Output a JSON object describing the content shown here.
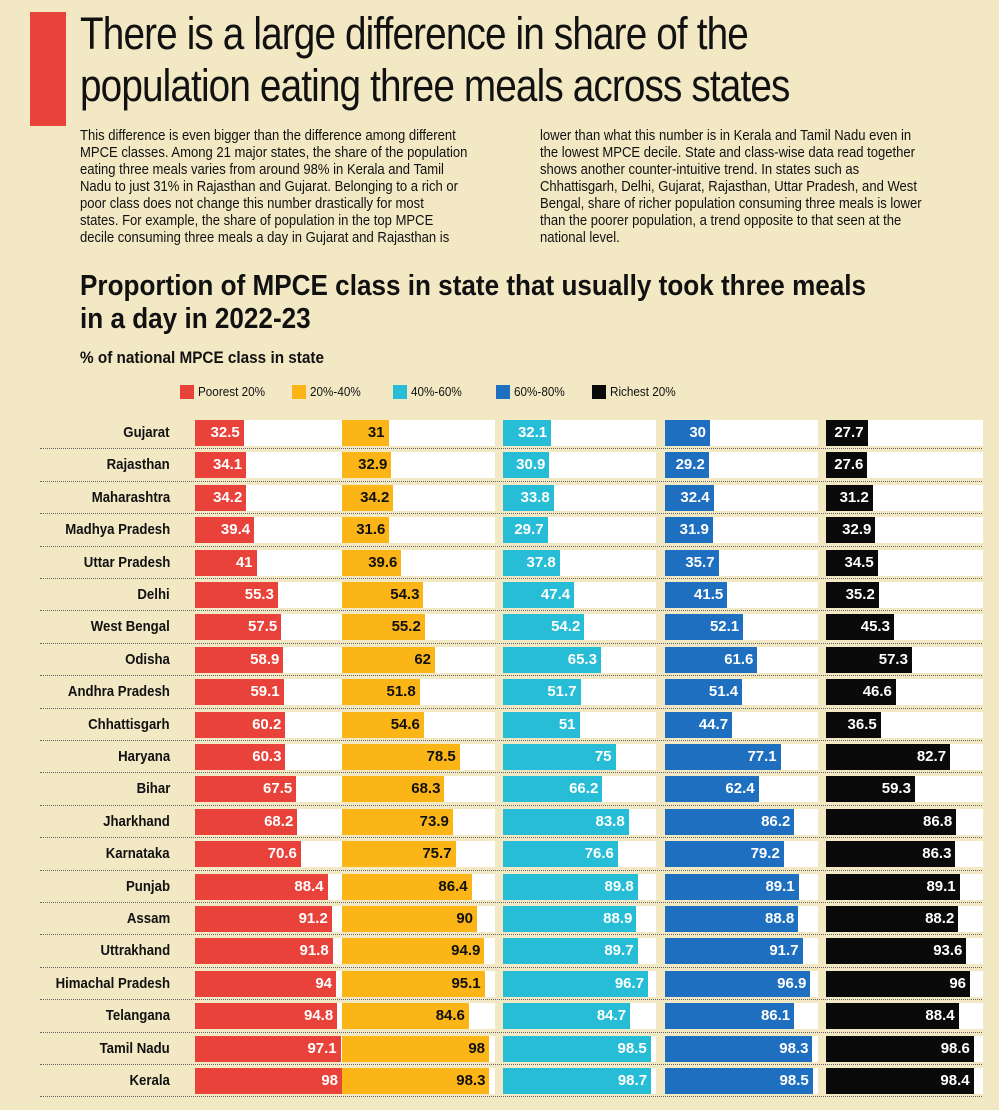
{
  "header": {
    "headline_line1": "There is a large difference in share of the",
    "headline_line2": "population eating three meals across states",
    "accent_color": "#e8423a"
  },
  "body": {
    "left": [
      "This difference is even bigger than the difference among different",
      "MPCE classes. Among 21 major states, the share of the population",
      "eating three meals varies from around 98% in Kerala and Tamil",
      "Nadu to just 31% in Rajasthan and Gujarat. Belonging to a rich or",
      "poor class does not change this number drastically for most",
      "states. For example, the share of population in the top MPCE",
      "decile consuming three meals a day in Gujarat and Rajasthan is"
    ],
    "right": [
      "lower than what this number is in Kerala and Tamil Nadu even in",
      "the lowest MPCE decile. State and class-wise data read together",
      "shows another counter-intuitive trend. In states such as",
      "Chhattisgarh, Delhi, Gujarat, Rajasthan, Uttar Pradesh, and West",
      "Bengal, share of richer population consuming three meals is lower",
      "than the poorer population, a trend opposite to that seen at the",
      "national level."
    ]
  },
  "chart_data": {
    "type": "bar",
    "title_line1": "Proportion of MPCE class in state that usually took three meals",
    "title_line2": "in a day in 2022-23",
    "subtitle": "% of national MPCE class in state",
    "legend_placement": "top",
    "xlim": [
      0,
      100
    ],
    "categories": [
      "Gujarat",
      "Rajasthan",
      "Maharashtra",
      "Madhya Pradesh",
      "Uttar Pradesh",
      "Delhi",
      "West Bengal",
      "Odisha",
      "Andhra Pradesh",
      "Chhattisgarh",
      "Haryana",
      "Bihar",
      "Jharkhand",
      "Karnataka",
      "Punjab",
      "Assam",
      "Uttrakhand",
      "Himachal Pradesh",
      "Telangana",
      "Tamil Nadu",
      "Kerala"
    ],
    "series": [
      {
        "name": "Poorest 20%",
        "color": "#e8423a",
        "values": [
          32.5,
          34.1,
          34.2,
          39.4,
          41,
          55.3,
          57.5,
          58.9,
          59.1,
          60.2,
          60.3,
          67.5,
          68.2,
          70.6,
          88.4,
          91.2,
          91.8,
          94,
          94.8,
          97.1,
          98
        ]
      },
      {
        "name": "20%-40%",
        "color": "#fbb516",
        "values": [
          31,
          32.9,
          34.2,
          31.6,
          39.6,
          54.3,
          55.2,
          62,
          51.8,
          54.6,
          78.5,
          68.3,
          73.9,
          75.7,
          86.4,
          90,
          94.9,
          95.1,
          84.6,
          98,
          98.3
        ]
      },
      {
        "name": "40%-60%",
        "color": "#27bdd6",
        "values": [
          32.1,
          30.9,
          33.8,
          29.7,
          37.8,
          47.4,
          54.2,
          65.3,
          51.7,
          51,
          75,
          66.2,
          83.8,
          76.6,
          89.8,
          88.9,
          89.7,
          96.7,
          84.7,
          98.5,
          98.7
        ]
      },
      {
        "name": "60%-80%",
        "color": "#1f6fc0",
        "values": [
          30,
          29.2,
          32.4,
          31.9,
          35.7,
          41.5,
          52.1,
          61.6,
          51.4,
          44.7,
          77.1,
          62.4,
          86.2,
          79.2,
          89.1,
          88.8,
          91.7,
          96.9,
          86.1,
          98.3,
          98.5
        ]
      },
      {
        "name": "Richest 20%",
        "color": "#0a0a0a",
        "values": [
          27.7,
          27.6,
          31.2,
          32.9,
          34.5,
          35.2,
          45.3,
          57.3,
          46.6,
          36.5,
          82.7,
          59.3,
          86.8,
          86.3,
          89.1,
          88.2,
          93.6,
          96,
          88.4,
          98.6,
          98.4
        ]
      }
    ]
  }
}
